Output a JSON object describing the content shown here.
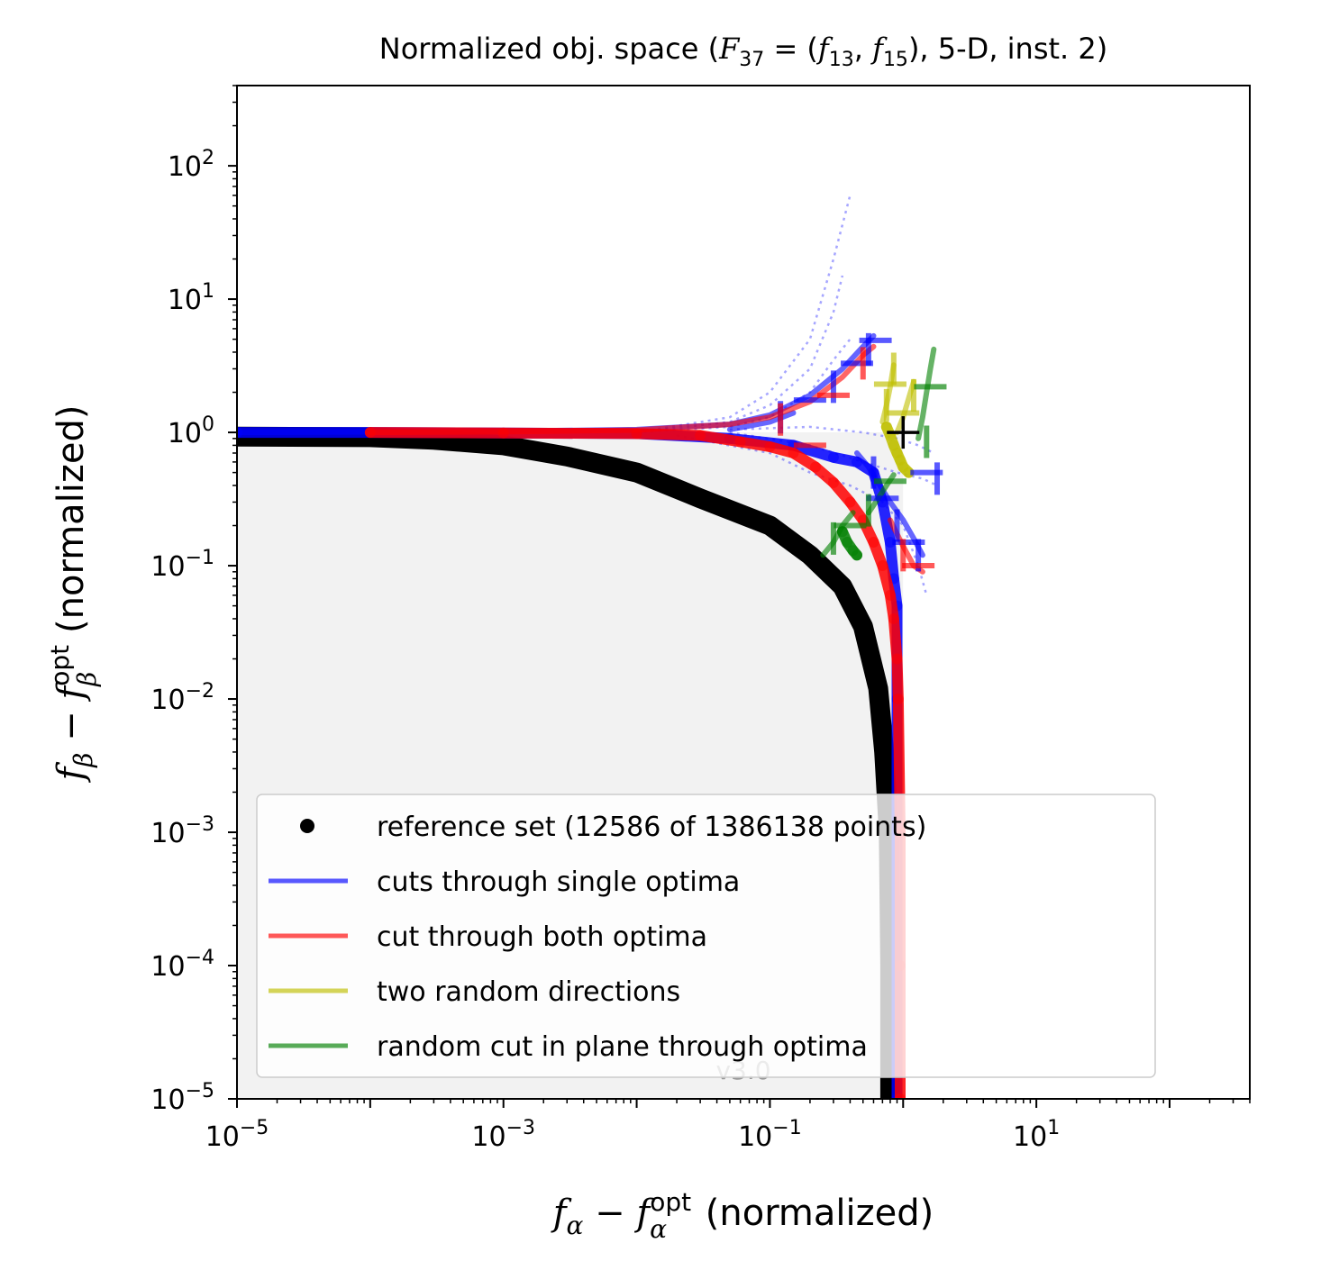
{
  "chart_data": {
    "type": "scatter",
    "title": {
      "prefix": "Normalized obj. space (",
      "F": "F",
      "F_sub": "37",
      "eq": " = (",
      "f1": "f",
      "f1_sub": "13",
      "comma": ", ",
      "f2": "f",
      "f2_sub": "15",
      "suffix": "), 5-D, inst. 2)"
    },
    "xlabel": {
      "f": "f",
      "f_sub": "α",
      "minus": " − ",
      "f2": "f",
      "f2_sup": "opt",
      "f2_sub": "α",
      "suffix": " (normalized)"
    },
    "ylabel": {
      "f": "f",
      "f_sub": "β",
      "minus": " − ",
      "f2": "f",
      "f2_sup": "opt",
      "f2_sub": "β",
      "suffix": " (normalized)"
    },
    "x_scale": "log",
    "y_scale": "log",
    "xlim": [
      1e-05,
      400
    ],
    "ylim": [
      1e-05,
      400
    ],
    "x_ticks": [
      {
        "value": 1e-05,
        "base": "10",
        "exp": "−5"
      },
      {
        "value": 0.001,
        "base": "10",
        "exp": "−3"
      },
      {
        "value": 0.1,
        "base": "10",
        "exp": "−1"
      },
      {
        "value": 10,
        "base": "10",
        "exp": "1"
      }
    ],
    "y_ticks": [
      {
        "value": 1e-05,
        "base": "10",
        "exp": "−5"
      },
      {
        "value": 0.0001,
        "base": "10",
        "exp": "−4"
      },
      {
        "value": 0.001,
        "base": "10",
        "exp": "−3"
      },
      {
        "value": 0.01,
        "base": "10",
        "exp": "−2"
      },
      {
        "value": 0.1,
        "base": "10",
        "exp": "−1"
      },
      {
        "value": 1,
        "base": "10",
        "exp": "0"
      },
      {
        "value": 10,
        "base": "10",
        "exp": "1"
      },
      {
        "value": 100,
        "base": "10",
        "exp": "2"
      }
    ],
    "grid": false,
    "shaded_region": {
      "x": [
        1e-05,
        1
      ],
      "y": [
        1e-05,
        1
      ],
      "color": "#f2f2f2"
    },
    "reference_point": {
      "x": 1,
      "y": 1,
      "marker": "+"
    },
    "watermark": "v3.0",
    "legend": {
      "placement": "lower-right",
      "entries": [
        {
          "label": "reference set (12586 of 1386138 points)",
          "color": "#000000",
          "marker": "dot"
        },
        {
          "label": "cuts through single optima",
          "color": "#0000ff",
          "marker": "line"
        },
        {
          "label": "cut through both optima",
          "color": "#ff0000",
          "marker": "line"
        },
        {
          "label": "two random directions",
          "color": "#bfbf00",
          "marker": "line"
        },
        {
          "label": "random cut in plane through optima",
          "color": "#008000",
          "marker": "line"
        }
      ]
    },
    "series": [
      {
        "id": "reference",
        "color": "#000000",
        "style": "points",
        "points": [
          [
            1e-05,
            0.93
          ],
          [
            0.0001,
            0.92
          ],
          [
            0.0003,
            0.88
          ],
          [
            0.001,
            0.8
          ],
          [
            0.003,
            0.66
          ],
          [
            0.01,
            0.5
          ],
          [
            0.03,
            0.32
          ],
          [
            0.1,
            0.2
          ],
          [
            0.2,
            0.12
          ],
          [
            0.35,
            0.07
          ],
          [
            0.5,
            0.035
          ],
          [
            0.65,
            0.012
          ],
          [
            0.72,
            0.004
          ],
          [
            0.78,
            0.001
          ],
          [
            0.8,
            0.0001
          ],
          [
            0.8,
            1e-05
          ]
        ]
      },
      {
        "id": "single-optima-thick",
        "color": "#0000ff",
        "style": "thick",
        "points": [
          [
            1e-05,
            1
          ],
          [
            0.0001,
            1
          ],
          [
            0.001,
            0.99
          ],
          [
            0.01,
            0.98
          ],
          [
            0.05,
            0.9
          ],
          [
            0.15,
            0.8
          ],
          [
            0.3,
            0.65
          ],
          [
            0.45,
            0.6
          ],
          [
            0.6,
            0.5
          ],
          [
            0.7,
            0.3
          ],
          [
            0.8,
            0.15
          ],
          [
            0.85,
            0.08
          ],
          [
            0.9,
            0.05
          ],
          [
            0.9,
            0.01
          ],
          [
            0.9,
            0.001
          ],
          [
            0.9,
            1e-05
          ]
        ]
      },
      {
        "id": "single-optima-upper",
        "color": "#0000ff",
        "style": "thin",
        "points": [
          [
            1e-05,
            1
          ],
          [
            0.001,
            1.02
          ],
          [
            0.01,
            1.05
          ],
          [
            0.05,
            1.15
          ],
          [
            0.1,
            1.35
          ],
          [
            0.2,
            1.9
          ],
          [
            0.35,
            3
          ],
          [
            0.5,
            4.4
          ],
          [
            0.6,
            5.3
          ]
        ]
      },
      {
        "id": "single-optima-upper-2",
        "color": "#0000ff",
        "style": "thin",
        "points": [
          [
            0.05,
            1.05
          ],
          [
            0.1,
            1.2
          ],
          [
            0.15,
            1.4
          ]
        ]
      },
      {
        "id": "single-optima-lower",
        "color": "#0000ff",
        "style": "thin",
        "points": [
          [
            0.45,
            0.7
          ],
          [
            0.55,
            0.55
          ],
          [
            0.65,
            0.42
          ],
          [
            0.8,
            0.3
          ],
          [
            1.0,
            0.22
          ],
          [
            1.2,
            0.16
          ],
          [
            1.4,
            0.12
          ]
        ]
      },
      {
        "id": "single-optima-dotted-1",
        "color": "#0000ff",
        "style": "dotted",
        "points": [
          [
            0.01,
            1
          ],
          [
            0.05,
            1.3
          ],
          [
            0.1,
            2
          ],
          [
            0.2,
            5
          ],
          [
            0.3,
            20
          ],
          [
            0.4,
            60
          ]
        ]
      },
      {
        "id": "single-optima-dotted-2",
        "color": "#0000ff",
        "style": "dotted",
        "points": [
          [
            0.01,
            1
          ],
          [
            0.05,
            1.2
          ],
          [
            0.1,
            1.6
          ],
          [
            0.2,
            3
          ],
          [
            0.3,
            8
          ],
          [
            0.35,
            15
          ]
        ]
      },
      {
        "id": "single-optima-dotted-3",
        "color": "#0000ff",
        "style": "dotted",
        "points": [
          [
            0.01,
            1
          ],
          [
            0.05,
            1.1
          ],
          [
            0.1,
            1.3
          ],
          [
            0.2,
            2
          ],
          [
            0.3,
            3.5
          ],
          [
            0.4,
            5
          ]
        ]
      },
      {
        "id": "single-optima-dotted-4",
        "color": "#0000ff",
        "style": "dotted",
        "points": [
          [
            0.02,
            0.95
          ],
          [
            0.1,
            0.7
          ],
          [
            0.2,
            0.5
          ],
          [
            0.4,
            0.4
          ],
          [
            0.7,
            0.3
          ],
          [
            1.0,
            0.2
          ],
          [
            1.3,
            0.1
          ],
          [
            1.5,
            0.06
          ]
        ]
      },
      {
        "id": "single-optima-dotted-5",
        "color": "#0000ff",
        "style": "dotted",
        "points": [
          [
            0.05,
            1
          ],
          [
            0.2,
            0.8
          ],
          [
            0.5,
            0.6
          ],
          [
            0.9,
            0.5
          ],
          [
            1.4,
            0.45
          ],
          [
            1.8,
            0.4
          ]
        ]
      },
      {
        "id": "single-optima-dotted-6",
        "color": "#0000ff",
        "style": "dotted",
        "points": [
          [
            0.05,
            1.05
          ],
          [
            0.2,
            1.1
          ],
          [
            0.5,
            1.0
          ],
          [
            0.9,
            0.9
          ],
          [
            1.3,
            0.8
          ],
          [
            1.7,
            0.7
          ]
        ]
      },
      {
        "id": "both-optima-main",
        "color": "#ff0000",
        "style": "thick",
        "points": [
          [
            0.0001,
            1
          ],
          [
            0.001,
            0.99
          ],
          [
            0.01,
            0.98
          ],
          [
            0.03,
            0.95
          ],
          [
            0.06,
            0.85
          ],
          [
            0.1,
            0.78
          ],
          [
            0.15,
            0.7
          ],
          [
            0.22,
            0.55
          ],
          [
            0.3,
            0.42
          ],
          [
            0.4,
            0.3
          ],
          [
            0.5,
            0.22
          ],
          [
            0.6,
            0.15
          ],
          [
            0.7,
            0.1
          ],
          [
            0.8,
            0.06
          ],
          [
            0.85,
            0.04
          ],
          [
            0.9,
            0.02
          ],
          [
            0.92,
            0.01
          ],
          [
            0.95,
            0.001
          ],
          [
            0.95,
            0.0001
          ],
          [
            0.95,
            1e-05
          ]
        ]
      },
      {
        "id": "both-optima-upper",
        "color": "#ff0000",
        "style": "thin",
        "points": [
          [
            0.0001,
            1
          ],
          [
            0.001,
            1.01
          ],
          [
            0.01,
            1.04
          ],
          [
            0.05,
            1.15
          ],
          [
            0.1,
            1.3
          ],
          [
            0.2,
            1.7
          ],
          [
            0.35,
            2.6
          ],
          [
            0.5,
            3.8
          ],
          [
            0.6,
            4.4
          ]
        ]
      },
      {
        "id": "both-optima-lower",
        "color": "#ff0000",
        "style": "thin",
        "points": [
          [
            0.8,
            0.22
          ],
          [
            1.0,
            0.14
          ],
          [
            1.2,
            0.1
          ],
          [
            1.4,
            0.09
          ]
        ]
      },
      {
        "id": "two-random",
        "color": "#bfbf00",
        "style": "thick",
        "points": [
          [
            0.75,
            1.1
          ],
          [
            0.8,
            0.95
          ],
          [
            0.85,
            0.8
          ],
          [
            0.9,
            0.7
          ],
          [
            0.95,
            0.62
          ],
          [
            1.0,
            0.55
          ],
          [
            1.1,
            0.5
          ]
        ]
      },
      {
        "id": "two-random-upper",
        "color": "#bfbf00",
        "style": "thin",
        "points": [
          [
            0.7,
            1.2
          ],
          [
            0.75,
            1.6
          ],
          [
            0.8,
            2.2
          ],
          [
            0.85,
            3.2
          ]
        ]
      },
      {
        "id": "two-random-upper-2",
        "color": "#bfbf00",
        "style": "thin",
        "points": [
          [
            0.9,
            1.0
          ],
          [
            1.0,
            1.3
          ],
          [
            1.1,
            1.8
          ],
          [
            1.2,
            2.4
          ]
        ]
      },
      {
        "id": "random-plane-1",
        "color": "#008000",
        "style": "thick",
        "points": [
          [
            0.35,
            0.18
          ],
          [
            0.38,
            0.15
          ],
          [
            0.42,
            0.13
          ],
          [
            0.45,
            0.12
          ]
        ]
      },
      {
        "id": "random-plane-2",
        "color": "#008000",
        "style": "thin",
        "points": [
          [
            0.25,
            0.12
          ],
          [
            0.3,
            0.15
          ],
          [
            0.35,
            0.2
          ],
          [
            0.42,
            0.25
          ]
        ]
      },
      {
        "id": "random-plane-3",
        "color": "#008000",
        "style": "thin",
        "points": [
          [
            0.55,
            0.25
          ],
          [
            0.65,
            0.32
          ],
          [
            0.75,
            0.4
          ],
          [
            0.85,
            0.48
          ]
        ]
      },
      {
        "id": "random-plane-4",
        "color": "#008000",
        "style": "thin",
        "points": [
          [
            1.3,
            0.9
          ],
          [
            1.4,
            1.3
          ],
          [
            1.5,
            2.0
          ],
          [
            1.6,
            3.0
          ],
          [
            1.7,
            4.2
          ]
        ]
      }
    ],
    "tick_marks": [
      {
        "color": "#0000ff",
        "points": [
          [
            0.12,
            1.3
          ],
          [
            0.2,
            1.75
          ],
          [
            0.3,
            2.2
          ],
          [
            0.45,
            3.3
          ],
          [
            0.55,
            4.2
          ],
          [
            0.62,
            4.9
          ],
          [
            0.6,
            0.5
          ],
          [
            0.7,
            0.32
          ],
          [
            0.9,
            0.2
          ],
          [
            1.1,
            0.15
          ],
          [
            1.3,
            0.12
          ],
          [
            1.5,
            0.5
          ],
          [
            1.8,
            0.45
          ]
        ]
      },
      {
        "color": "#ff0000",
        "points": [
          [
            0.12,
            1.25
          ],
          [
            0.3,
            1.9
          ],
          [
            0.5,
            3.3
          ],
          [
            0.2,
            0.8
          ],
          [
            1.0,
            0.12
          ],
          [
            1.3,
            0.1
          ]
        ]
      },
      {
        "color": "#bfbf00",
        "points": [
          [
            0.75,
            1.6
          ],
          [
            0.8,
            2.3
          ],
          [
            0.85,
            3.0
          ],
          [
            1.0,
            1.4
          ],
          [
            1.2,
            1.9
          ]
        ]
      },
      {
        "color": "#008000",
        "points": [
          [
            0.3,
            0.16
          ],
          [
            0.4,
            0.2
          ],
          [
            0.55,
            0.26
          ],
          [
            0.8,
            0.43
          ],
          [
            1.5,
            0.85
          ],
          [
            1.6,
            2.2
          ]
        ]
      }
    ]
  }
}
